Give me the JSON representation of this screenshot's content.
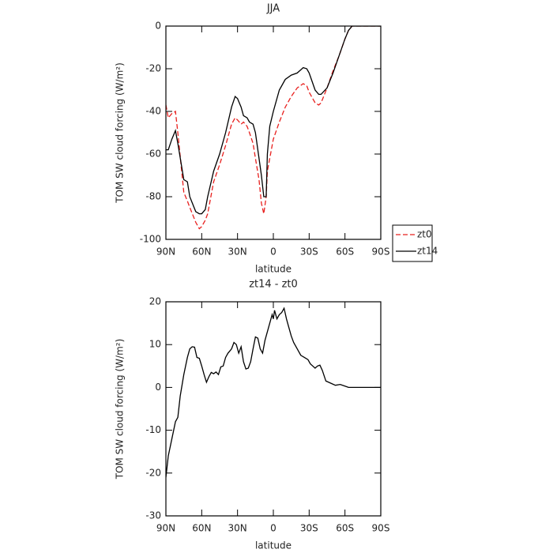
{
  "chart_data": [
    {
      "type": "line",
      "title": "JJA",
      "xlabel": "latitude",
      "ylabel": "TOM SW cloud forcing (W/m²)",
      "x": [
        90,
        88,
        85,
        82,
        80,
        75,
        72,
        70,
        65,
        62,
        60,
        57,
        55,
        50,
        45,
        40,
        35,
        32,
        30,
        27,
        25,
        22,
        20,
        17,
        15,
        12,
        10,
        8,
        6,
        5,
        3,
        0,
        -5,
        -10,
        -15,
        -20,
        -25,
        -28,
        -30,
        -35,
        -38,
        -40,
        -45,
        -50,
        -55,
        -60,
        -63,
        -66,
        -70,
        -90
      ],
      "series": [
        {
          "name": "zt0",
          "color": "#e8201e",
          "dashed": true,
          "values": [
            -37,
            -43,
            -41,
            -40,
            -50,
            -78,
            -82,
            -85,
            -92,
            -95,
            -94,
            -91,
            -88,
            -73,
            -65,
            -56,
            -46,
            -43,
            -44,
            -46,
            -45,
            -47,
            -50,
            -55,
            -62,
            -72,
            -83,
            -88,
            -80,
            -68,
            -62,
            -53,
            -45,
            -38,
            -33,
            -29,
            -27,
            -28,
            -31,
            -36,
            -37,
            -36,
            -29,
            -21,
            -14,
            -6,
            -2,
            0,
            0,
            0
          ]
        },
        {
          "name": "zt14",
          "color": "#000000",
          "dashed": false,
          "values": [
            -58,
            -58,
            -53,
            -49,
            -55,
            -72,
            -73,
            -80,
            -87,
            -88,
            -88,
            -86,
            -80,
            -68,
            -60,
            -50,
            -38,
            -33,
            -34,
            -38,
            -42,
            -43,
            -45,
            -46,
            -50,
            -62,
            -70,
            -80,
            -80,
            -60,
            -47,
            -40,
            -30,
            -25,
            -23,
            -22,
            -19.5,
            -20,
            -22,
            -30,
            -32,
            -32,
            -29,
            -22,
            -14,
            -6,
            -2,
            0,
            0,
            0
          ]
        }
      ],
      "xlim": [
        90,
        -90
      ],
      "xticks": [
        {
          "value": 90,
          "label": "90N"
        },
        {
          "value": 60,
          "label": "60N"
        },
        {
          "value": 30,
          "label": "30N"
        },
        0,
        {
          "value": -30,
          "label": "30S"
        },
        {
          "value": -60,
          "label": "60S"
        },
        {
          "value": -90,
          "label": "90S"
        }
      ],
      "ylim": [
        -100,
        0
      ],
      "yticks": [
        0,
        -20,
        -40,
        -60,
        -80,
        -100
      ],
      "legend": "right"
    },
    {
      "type": "line",
      "title": "zt14 - zt0",
      "xlabel": "latitude",
      "ylabel": "TOM SW cloud forcing (W/m²)",
      "x": [
        90,
        88,
        85,
        82,
        80,
        78,
        75,
        72,
        70,
        68,
        66,
        64,
        62,
        60,
        58,
        56,
        54,
        52,
        50,
        48,
        46,
        44,
        42,
        40,
        38,
        35,
        33,
        31,
        29,
        27,
        25,
        23,
        21,
        19,
        17,
        15,
        13,
        11,
        9,
        7,
        5,
        3,
        1,
        0,
        -1,
        -3,
        -5,
        -7,
        -9,
        -11,
        -13,
        -15,
        -17,
        -20,
        -23,
        -26,
        -29,
        -31,
        -33,
        -35,
        -37,
        -39,
        -41,
        -44,
        -48,
        -52,
        -56,
        -60,
        -63,
        -90
      ],
      "values": [
        -21,
        -16,
        -12,
        -8,
        -7,
        -2,
        3,
        7,
        9,
        9.5,
        9.4,
        7,
        6.8,
        5,
        3,
        1.2,
        2.5,
        3.5,
        3.2,
        3.6,
        3,
        4.8,
        5,
        7,
        8,
        9,
        10.5,
        10,
        8,
        9.5,
        6,
        4.3,
        4.5,
        6,
        9,
        11.8,
        11.5,
        9,
        8,
        11,
        13,
        15,
        17,
        16,
        18,
        16,
        17,
        17.5,
        18.5,
        16,
        14,
        12,
        10.5,
        9,
        7.5,
        7,
        6.5,
        5.5,
        5,
        4.5,
        5,
        5.2,
        4,
        1.5,
        1,
        0.5,
        0.7,
        0.3,
        0,
        0
      ],
      "color": "#000000",
      "xlim": [
        90,
        -90
      ],
      "xticks": [
        {
          "value": 90,
          "label": "90N"
        },
        {
          "value": 60,
          "label": "60N"
        },
        {
          "value": 30,
          "label": "30N"
        },
        0,
        {
          "value": -30,
          "label": "30S"
        },
        {
          "value": -60,
          "label": "60S"
        },
        {
          "value": -90,
          "label": "90S"
        }
      ],
      "ylim": [
        -30,
        20
      ],
      "yticks": [
        20,
        10,
        0,
        -10,
        -20,
        -30
      ]
    }
  ]
}
